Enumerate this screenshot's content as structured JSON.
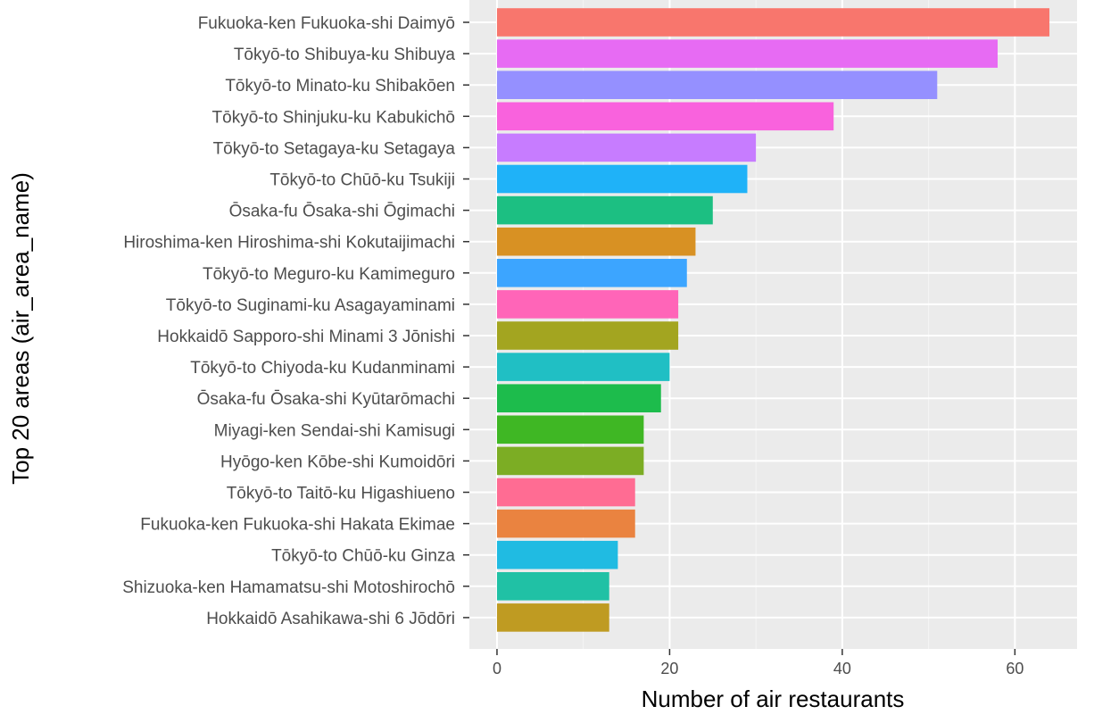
{
  "chart_data": {
    "type": "bar",
    "orientation": "horizontal",
    "xlabel": "Number of air restaurants",
    "ylabel": "Top 20 areas (air_area_name)",
    "xlim": [
      -3.2,
      67.2
    ],
    "xticks": [
      0,
      20,
      40,
      60
    ],
    "grid": true,
    "legend": "none",
    "bars": [
      {
        "category": "Fukuoka-ken Fukuoka-shi Daimyō",
        "value": 64,
        "color": "#F8766D"
      },
      {
        "category": "Tōkyō-to Shibuya-ku Shibuya",
        "value": 58,
        "color": "#E76BF3"
      },
      {
        "category": "Tōkyō-to Minato-ku Shibakōen",
        "value": 51,
        "color": "#9590FF"
      },
      {
        "category": "Tōkyō-to Shinjuku-ku Kabukichō",
        "value": 39,
        "color": "#F962DD"
      },
      {
        "category": "Tōkyō-to Setagaya-ku Setagaya",
        "value": 30,
        "color": "#C77CFF"
      },
      {
        "category": "Tōkyō-to Chūō-ku Tsukiji",
        "value": 29,
        "color": "#1FB2F8"
      },
      {
        "category": "Ōsaka-fu Ōsaka-shi Ōgimachi",
        "value": 25,
        "color": "#1CBF82"
      },
      {
        "category": "Hiroshima-ken Hiroshima-shi Kokutaijimachi",
        "value": 23,
        "color": "#D89123"
      },
      {
        "category": "Tōkyō-to Meguro-ku Kamimeguro",
        "value": 22,
        "color": "#3CA5FF"
      },
      {
        "category": "Tōkyō-to Suginami-ku Asagayaminami",
        "value": 21,
        "color": "#FF65B8"
      },
      {
        "category": "Hokkaidō Sapporo-shi Minami 3 Jōnishi",
        "value": 21,
        "color": "#A3A520"
      },
      {
        "category": "Tōkyō-to Chiyoda-ku Kudanminami",
        "value": 20,
        "color": "#20BFC4"
      },
      {
        "category": "Ōsaka-fu Ōsaka-shi Kyūtarōmachi",
        "value": 19,
        "color": "#1DBC4C"
      },
      {
        "category": "Miyagi-ken Sendai-shi Kamisugi",
        "value": 17,
        "color": "#3FB724"
      },
      {
        "category": "Hyōgo-ken Kōbe-shi Kumoidōri",
        "value": 17,
        "color": "#7CAD24"
      },
      {
        "category": "Tōkyō-to Taitō-ku Higashiueno",
        "value": 16,
        "color": "#FF6C93"
      },
      {
        "category": "Fukuoka-ken Fukuoka-shi Hakata Ekimae",
        "value": 16,
        "color": "#EA8340"
      },
      {
        "category": "Tōkyō-to Chūō-ku Ginza",
        "value": 14,
        "color": "#20BBE2"
      },
      {
        "category": "Shizuoka-ken Hamamatsu-shi Motoshirochō",
        "value": 13,
        "color": "#20C1A5"
      },
      {
        "category": "Hokkaidō Asahikawa-shi 6 Jōdōri",
        "value": 13,
        "color": "#BF9B22"
      }
    ]
  },
  "colors": {
    "panel_background": "#EBEBEB",
    "grid_major": "#FFFFFF",
    "grid_minor": "#F5F5F5",
    "tick": "#333333"
  }
}
